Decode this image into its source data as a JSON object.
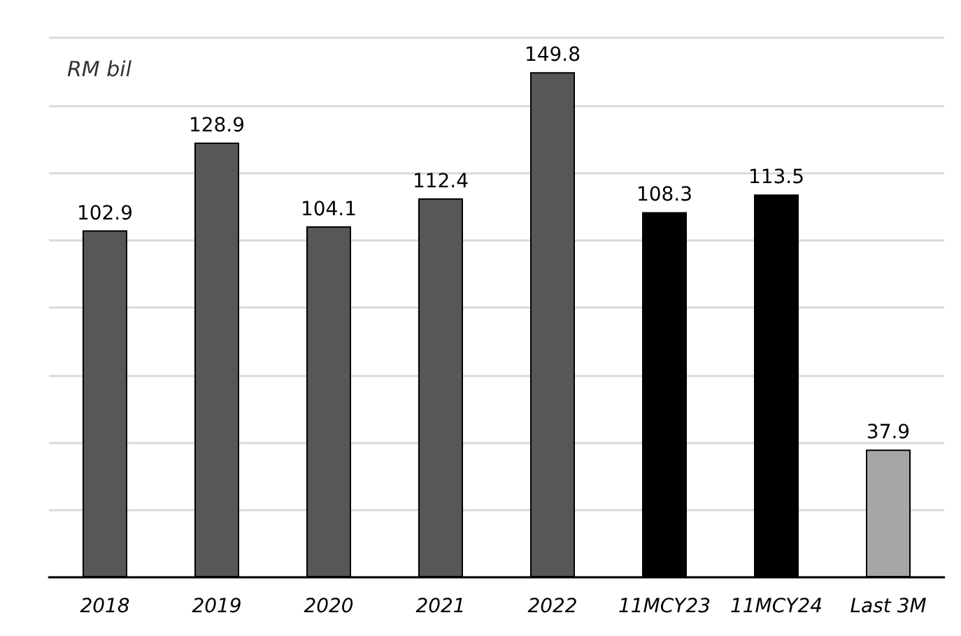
{
  "chart_data": {
    "type": "bar",
    "ylabel": "RM bil",
    "categories": [
      "2018",
      "2019",
      "2020",
      "2021",
      "2022",
      "11MCY23",
      "11MCY24",
      "Last 3M"
    ],
    "values": [
      102.9,
      128.9,
      104.1,
      112.4,
      149.8,
      108.3,
      113.5,
      37.9
    ],
    "colors": [
      "#575757",
      "#575757",
      "#575757",
      "#575757",
      "#575757",
      "#000000",
      "#000000",
      "#a6a6a6"
    ],
    "ylim": [
      0,
      160
    ],
    "yticks": [
      0,
      20,
      40,
      60,
      80,
      100,
      120,
      140,
      160
    ],
    "tick_labels": "x",
    "grid": "y",
    "data_labels": true
  }
}
